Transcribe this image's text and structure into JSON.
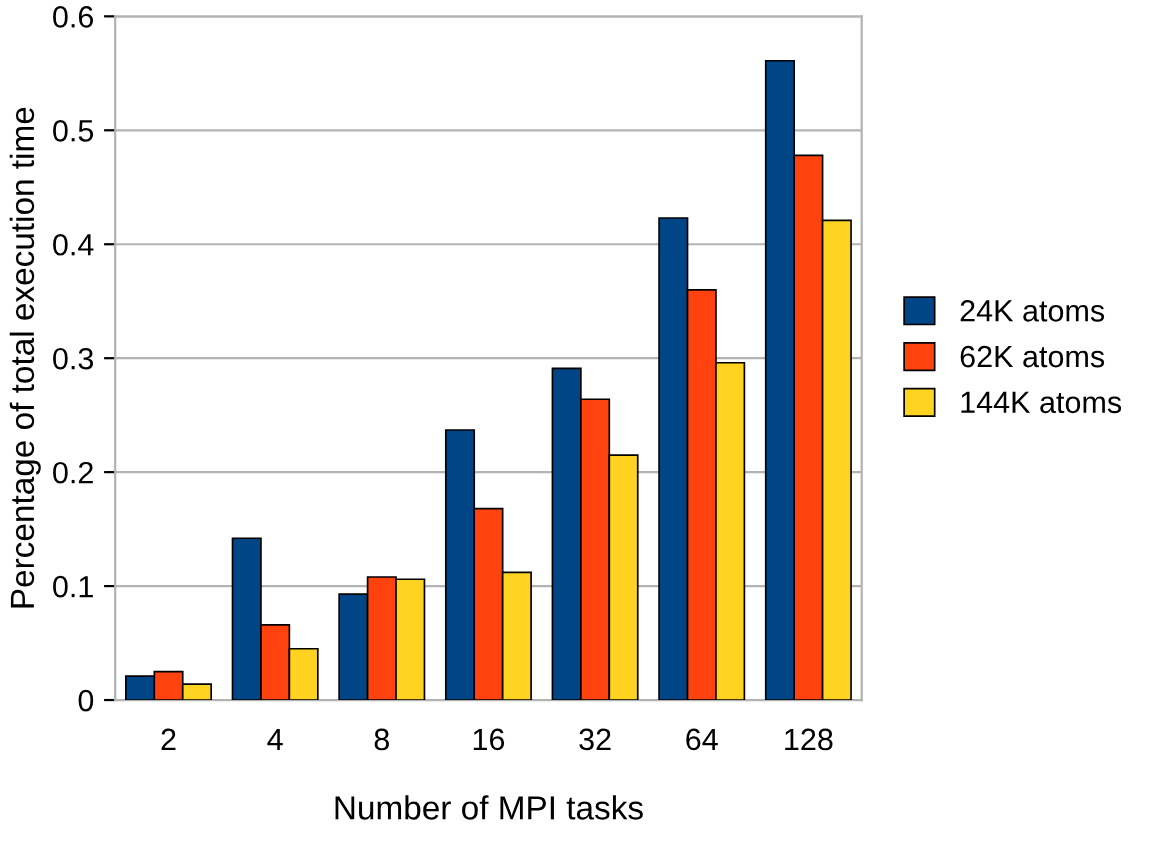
{
  "chart_data": {
    "type": "bar",
    "xlabel": "Number of MPI tasks",
    "ylabel": "Percentage of total execution time",
    "categories": [
      "2",
      "4",
      "8",
      "16",
      "32",
      "64",
      "128"
    ],
    "series": [
      {
        "name": "24K atoms",
        "color": "#004586",
        "values": [
          0.021,
          0.142,
          0.093,
          0.237,
          0.291,
          0.423,
          0.561
        ]
      },
      {
        "name": "62K atoms",
        "color": "#ff420e",
        "values": [
          0.025,
          0.066,
          0.108,
          0.168,
          0.264,
          0.36,
          0.478
        ]
      },
      {
        "name": "144K atoms",
        "color": "#ffd320",
        "values": [
          0.014,
          0.045,
          0.106,
          0.112,
          0.215,
          0.296,
          0.421
        ]
      }
    ],
    "ylim": [
      0,
      0.6
    ],
    "yticks": [
      {
        "value": 0,
        "label": "0"
      },
      0.1,
      0.2,
      0.3,
      0.4,
      0.5,
      0.6
    ],
    "grid": "y",
    "legend": "right"
  }
}
